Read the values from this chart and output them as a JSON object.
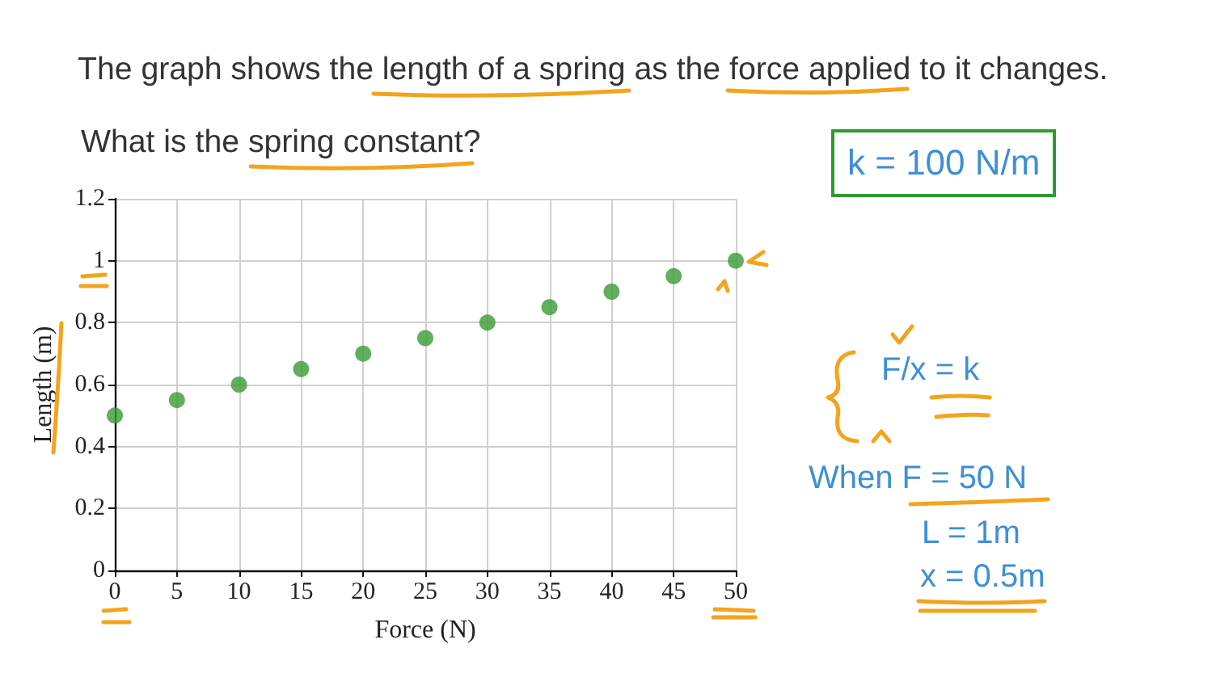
{
  "chart_data": {
    "type": "scatter",
    "title": "The graph shows the length of a spring as the force applied to it changes.",
    "subtitle": "What is the spring constant?",
    "xlabel": "Force (N)",
    "ylabel": "Length (m)",
    "x": [
      0,
      5,
      10,
      15,
      20,
      25,
      30,
      35,
      40,
      45,
      50
    ],
    "values": [
      0.5,
      0.55,
      0.6,
      0.65,
      0.7,
      0.75,
      0.8,
      0.85,
      0.9,
      0.95,
      1
    ],
    "color": "#3a9a35",
    "marker": "circle",
    "xlim": [
      0,
      50
    ],
    "xticks": [
      0,
      5,
      10,
      15,
      20,
      25,
      30,
      35,
      40,
      45,
      50
    ],
    "ylim": [
      0,
      1.2
    ],
    "yticks": [
      0,
      0.2,
      0.4,
      0.6,
      0.8,
      1,
      1.2
    ],
    "grid": true,
    "annotations": [
      "k = 100 N/m",
      "F/x = k",
      "When F = 50 N",
      "L = 1m",
      "x = 0.5m"
    ]
  }
}
